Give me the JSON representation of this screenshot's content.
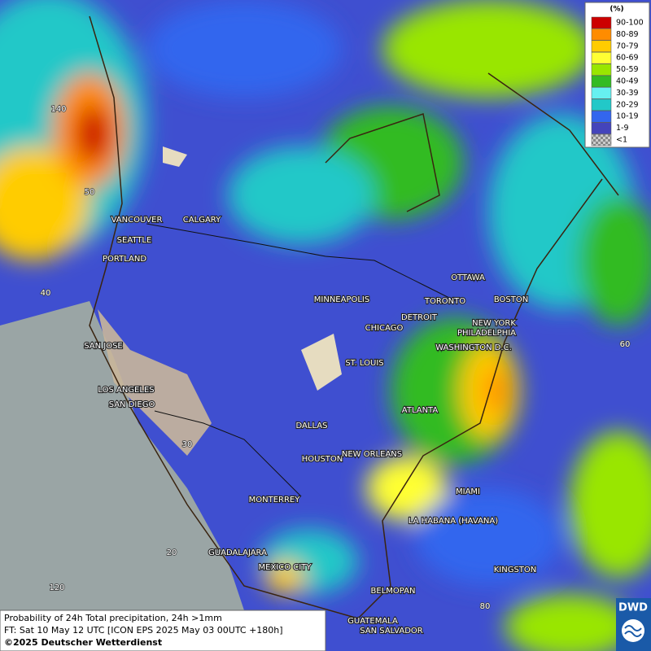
{
  "legend": {
    "title": "(%)",
    "items": [
      {
        "label": "90-100",
        "color": "#cc0000"
      },
      {
        "label": "80-89",
        "color": "#ff8c00"
      },
      {
        "label": "70-79",
        "color": "#ffcc00"
      },
      {
        "label": "60-69",
        "color": "#ffff33"
      },
      {
        "label": "50-59",
        "color": "#99e600"
      },
      {
        "label": "40-49",
        "color": "#33bb22"
      },
      {
        "label": "30-39",
        "color": "#66f0f0"
      },
      {
        "label": "20-29",
        "color": "#22c8c8"
      },
      {
        "label": "10-19",
        "color": "#3366ee"
      },
      {
        "label": "1-9",
        "color": "#4444bb"
      },
      {
        "label": "<1",
        "color": "#aaaaaa"
      }
    ]
  },
  "cities": [
    "VANCOUVER",
    "CALGARY",
    "SEATTLE",
    "PORTLAND",
    "SAN JOSE",
    "LOS ANGELES",
    "SAN DIEGO",
    "MINNEAPOLIS",
    "CHICAGO",
    "DETROIT",
    "TORONTO",
    "OTTAWA",
    "BOSTON",
    "NEW YORK",
    "PHILADELPHIA",
    "WASHINGTON D.C.",
    "ST. LOUIS",
    "DALLAS",
    "ATLANTA",
    "HOUSTON",
    "NEW ORLEANS",
    "MIAMI",
    "MONTERREY",
    "LA HABANA (HAVANA)",
    "GUADALAJARA",
    "MEXICO CITY",
    "KINGSTON",
    "BELMOPAN",
    "GUATEMALA",
    "SAN SALVADOR"
  ],
  "grid_labels": [
    "140",
    "50",
    "40",
    "60",
    "30",
    "20",
    "120",
    "80"
  ],
  "caption": [
    "Probability of 24h Total precipitation, 24h >1mm",
    "FT: Sat 10 May 12 UTC [ICON EPS 2025 May 03 00UTC +180h]",
    "©2025 Deutscher Wetterdienst"
  ],
  "logo": "DWD"
}
